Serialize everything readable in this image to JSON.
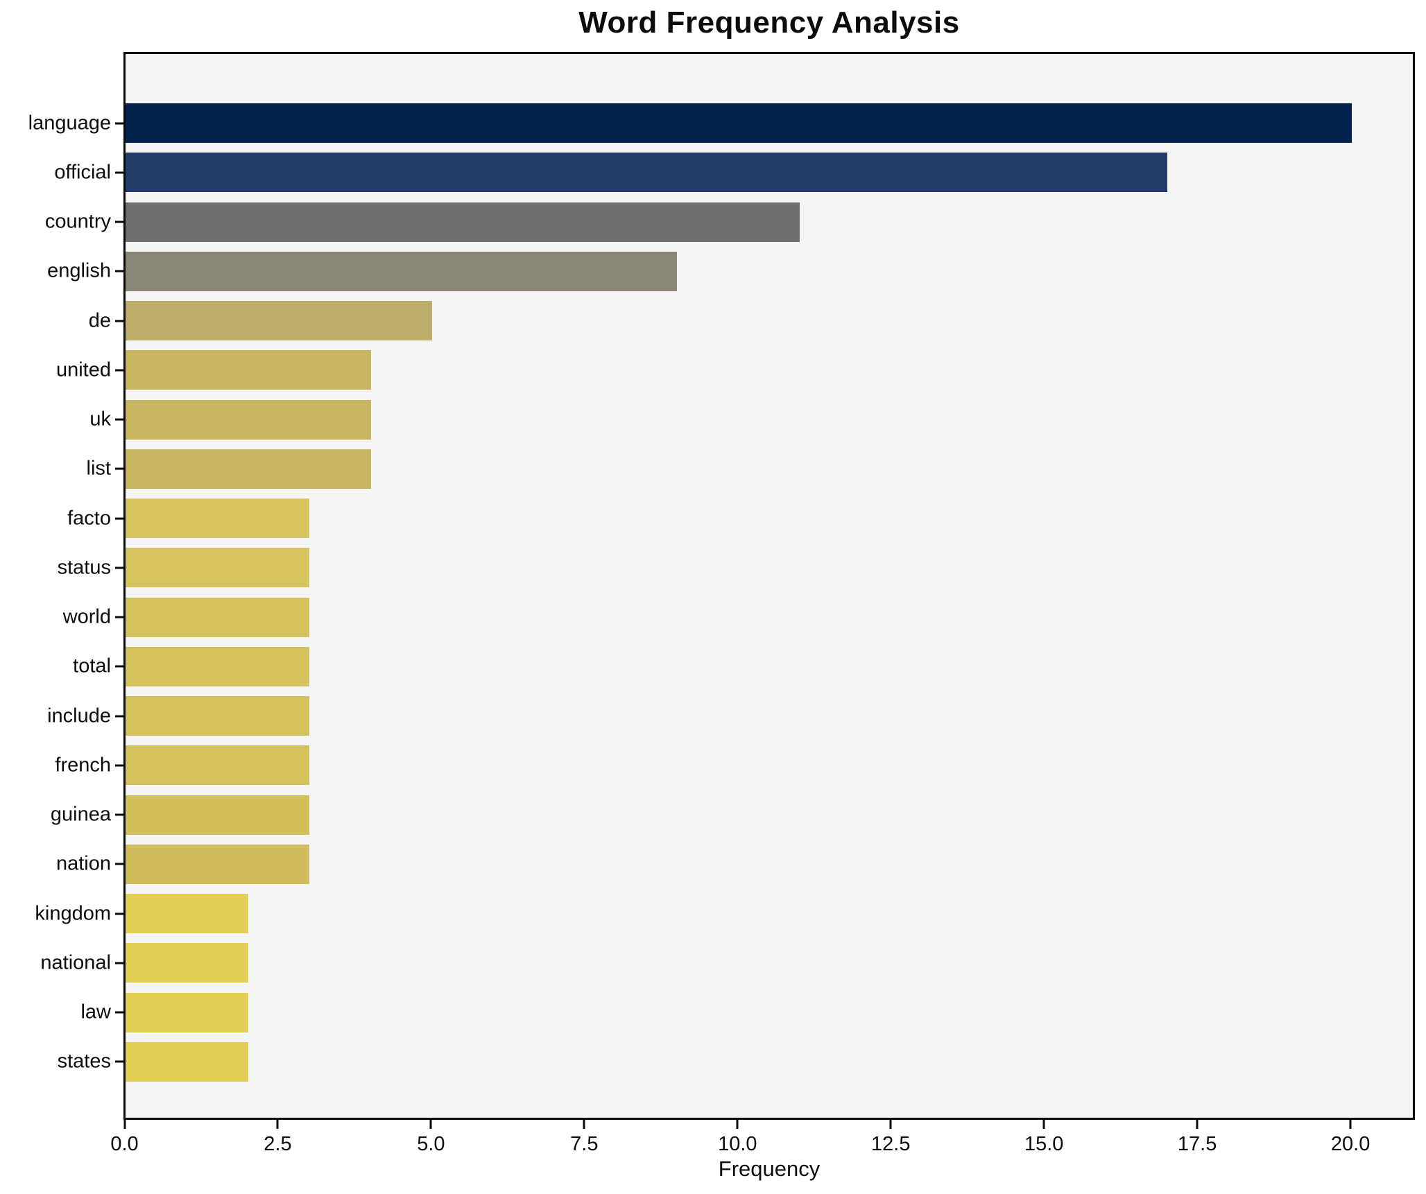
{
  "title": "Word Frequency Analysis",
  "chart_data": {
    "type": "bar",
    "orientation": "horizontal",
    "title": "Word Frequency Analysis",
    "xlabel": "Frequency",
    "ylabel": "",
    "categories": [
      "language",
      "official",
      "country",
      "english",
      "de",
      "united",
      "uk",
      "list",
      "facto",
      "status",
      "world",
      "total",
      "include",
      "french",
      "guinea",
      "nation",
      "kingdom",
      "national",
      "law",
      "states"
    ],
    "values": [
      20,
      17,
      11,
      9,
      5,
      4,
      4,
      4,
      3,
      3,
      3,
      3,
      3,
      3,
      3,
      3,
      2,
      2,
      2,
      2
    ],
    "bar_colors": [
      "#03234e",
      "#253c6a",
      "#6f6f70",
      "#8a8678",
      "#bcad69",
      "#c7b562",
      "#c7b562",
      "#c7b562",
      "#d6c45f",
      "#d6c45f",
      "#d4c25e",
      "#d4c25e",
      "#d3c15d",
      "#d3c15d",
      "#d2c05c",
      "#d0bd5b",
      "#e3cf53",
      "#e3cf53",
      "#e3cf53",
      "#e2ce55"
    ],
    "xlim": [
      0,
      21
    ],
    "xticks": [
      0,
      2.5,
      5,
      7.5,
      10,
      12.5,
      15,
      17.5,
      20
    ],
    "xtick_labels": [
      "0.0",
      "2.5",
      "5.0",
      "7.5",
      "10.0",
      "12.5",
      "15.0",
      "17.5",
      "20.0"
    ],
    "grid": false,
    "legend": null,
    "plot_background": "#f5f5f6",
    "figure_background": "#ffffff",
    "spine_color": "#0b0b0b",
    "text_color": "#0c0c0c"
  }
}
